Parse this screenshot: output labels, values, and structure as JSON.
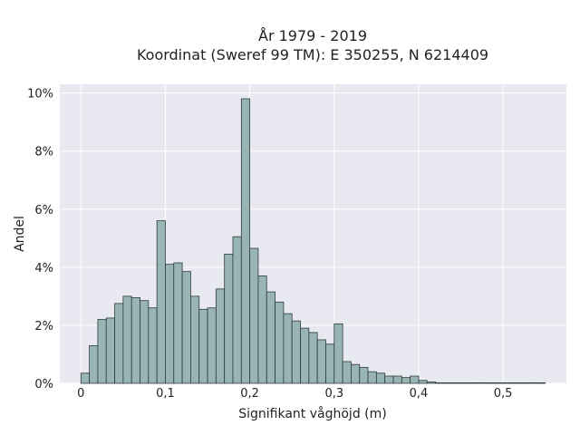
{
  "chart_data": {
    "type": "bar",
    "title_line1": "År 1979 - 2019",
    "title_line2": "Koordinat (Sweref 99 TM): E 350255, N 6214409",
    "xlabel": "Signifikant våghöjd (m)",
    "ylabel": "Andel",
    "xlim": [
      -0.025,
      0.575
    ],
    "ylim": [
      0,
      10.3
    ],
    "grid": true,
    "x_ticks": [
      0,
      0.1,
      0.2,
      0.3,
      0.4,
      0.5
    ],
    "x_tick_labels": [
      "0",
      "0,1",
      "0,2",
      "0,3",
      "0,4",
      "0,5"
    ],
    "y_ticks": [
      0,
      2,
      4,
      6,
      8,
      10
    ],
    "y_tick_labels": [
      "0%",
      "2%",
      "4%",
      "6%",
      "8%",
      "10%"
    ],
    "bin_width": 0.01,
    "bin_start": 0.0,
    "values": [
      0.35,
      1.3,
      2.2,
      2.25,
      2.75,
      3.0,
      2.95,
      2.85,
      2.6,
      5.6,
      4.1,
      4.15,
      3.85,
      3.0,
      2.55,
      2.6,
      3.25,
      4.45,
      5.05,
      9.8,
      4.65,
      3.7,
      3.15,
      2.8,
      2.4,
      2.15,
      1.9,
      1.75,
      1.5,
      1.35,
      2.05,
      0.75,
      0.65,
      0.55,
      0.4,
      0.35,
      0.25,
      0.25,
      0.2,
      0.25,
      0.1,
      0.05,
      0.02,
      0.02,
      0.02,
      0.02,
      0.02,
      0.02,
      0.02,
      0.02,
      0.02,
      0.02,
      0.02,
      0.02,
      0.02
    ]
  },
  "colors": {
    "plot_background": "#e9e9f1",
    "grid": "#ffffff",
    "bar_fill": "#98b4b4",
    "bar_stroke": "#2f3b3b"
  }
}
